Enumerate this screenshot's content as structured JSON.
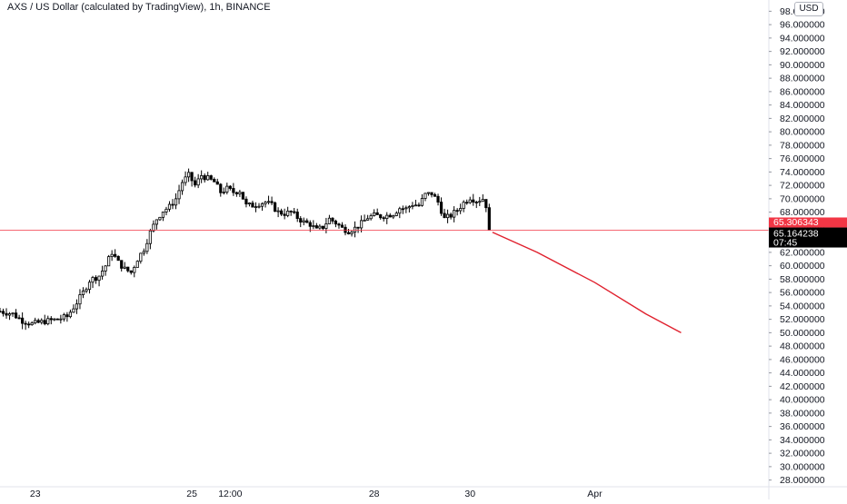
{
  "header": {
    "symbol_title": "AXS / US Dollar (calculated by TradingView), 1h, BINANCE",
    "currency": "USD"
  },
  "price_labels": {
    "alert": "65.306343",
    "last": "65.164238",
    "countdown": "07:45"
  },
  "colors": {
    "background": "#ffffff",
    "candles": "#000000",
    "alert_line": "#f23645",
    "projection": "#e0212e",
    "axis_text": "#131722",
    "axis_line": "#e0e3eb"
  },
  "chart_data": {
    "type": "candlestick",
    "symbol": "AXS / US Dollar",
    "interval": "1h",
    "exchange": "BINANCE",
    "ylim": [
      27,
      99
    ],
    "y_ticks": [
      28,
      30,
      32,
      34,
      36,
      38,
      40,
      42,
      44,
      46,
      48,
      50,
      52,
      54,
      56,
      58,
      60,
      62,
      64,
      66,
      68,
      70,
      72,
      74,
      76,
      78,
      80,
      82,
      84,
      86,
      88,
      90,
      92,
      94,
      96,
      98
    ],
    "y_tick_labels": [
      "28.000000",
      "30.000000",
      "32.000000",
      "34.000000",
      "36.000000",
      "38.000000",
      "40.000000",
      "42.000000",
      "44.000000",
      "46.000000",
      "48.000000",
      "50.000000",
      "52.000000",
      "54.000000",
      "56.000000",
      "58.000000",
      "60.000000",
      "62.000000",
      "64.000000",
      "66.000000",
      "68.000000",
      "70.000000",
      "72.000000",
      "74.000000",
      "76.000000",
      "78.000000",
      "80.000000",
      "82.000000",
      "84.000000",
      "86.000000",
      "88.000000",
      "90.000000",
      "92.000000",
      "94.000000",
      "96.000000",
      "98.000000"
    ],
    "x_labels": [
      "23",
      "25",
      "12:00",
      "28",
      "30",
      "Apr"
    ],
    "x_label_hours": [
      -17,
      32,
      44,
      89,
      119,
      158
    ],
    "x_range_hours": [
      -28,
      188
    ],
    "price_path": [
      [
        -28,
        53.2
      ],
      [
        -24,
        52.8
      ],
      [
        -21,
        51.8
      ],
      [
        -18,
        51.3
      ],
      [
        -14,
        51.7
      ],
      [
        -10,
        52.0
      ],
      [
        -7,
        52.4
      ],
      [
        -4,
        54.5
      ],
      [
        -2,
        56.0
      ],
      [
        0,
        57.8
      ],
      [
        3,
        58.5
      ],
      [
        5,
        60.0
      ],
      [
        7,
        62.0
      ],
      [
        9,
        60.5
      ],
      [
        11,
        59.5
      ],
      [
        13,
        59.0
      ],
      [
        15,
        61.0
      ],
      [
        17,
        62.5
      ],
      [
        19,
        65.0
      ],
      [
        21,
        67.0
      ],
      [
        23,
        68.2
      ],
      [
        25,
        68.8
      ],
      [
        27,
        70.0
      ],
      [
        29,
        72.5
      ],
      [
        31,
        73.5
      ],
      [
        33,
        72.0
      ],
      [
        35,
        73.5
      ],
      [
        37,
        73.0
      ],
      [
        39,
        72.5
      ],
      [
        41,
        71.0
      ],
      [
        43,
        71.5
      ],
      [
        45,
        71.0
      ],
      [
        47,
        71.2
      ],
      [
        49,
        69.0
      ],
      [
        51,
        69.0
      ],
      [
        53,
        69.3
      ],
      [
        55,
        69.5
      ],
      [
        57,
        69.0
      ],
      [
        59,
        68.0
      ],
      [
        61,
        67.8
      ],
      [
        63,
        68.0
      ],
      [
        65,
        67.2
      ],
      [
        67,
        66.5
      ],
      [
        69,
        66.2
      ],
      [
        71,
        65.3
      ],
      [
        73,
        65.8
      ],
      [
        75,
        67.0
      ],
      [
        77,
        66.4
      ],
      [
        79,
        65.6
      ],
      [
        81,
        65.2
      ],
      [
        83,
        65.6
      ],
      [
        85,
        66.3
      ],
      [
        87,
        67.2
      ],
      [
        89,
        67.5
      ],
      [
        91,
        67.4
      ],
      [
        93,
        67.5
      ],
      [
        95,
        67.8
      ],
      [
        97,
        68.6
      ],
      [
        99,
        68.5
      ],
      [
        101,
        69.2
      ],
      [
        103,
        69.0
      ],
      [
        105,
        70.6
      ],
      [
        107,
        70.8
      ],
      [
        109,
        69.5
      ],
      [
        111,
        67.0
      ],
      [
        113,
        67.5
      ],
      [
        115,
        68.3
      ],
      [
        117,
        69.4
      ],
      [
        119,
        70.2
      ],
      [
        121,
        69.7
      ],
      [
        123,
        70.0
      ],
      [
        124,
        69.0
      ],
      [
        125,
        65.0
      ]
    ],
    "projection_path": [
      [
        126,
        65.0
      ],
      [
        140,
        62.0
      ],
      [
        158,
        57.5
      ],
      [
        174,
        52.8
      ],
      [
        185,
        50.0
      ]
    ],
    "horizontal_lines": [
      {
        "name": "alert",
        "value": 65.306343
      }
    ],
    "last_price": 65.164238
  }
}
